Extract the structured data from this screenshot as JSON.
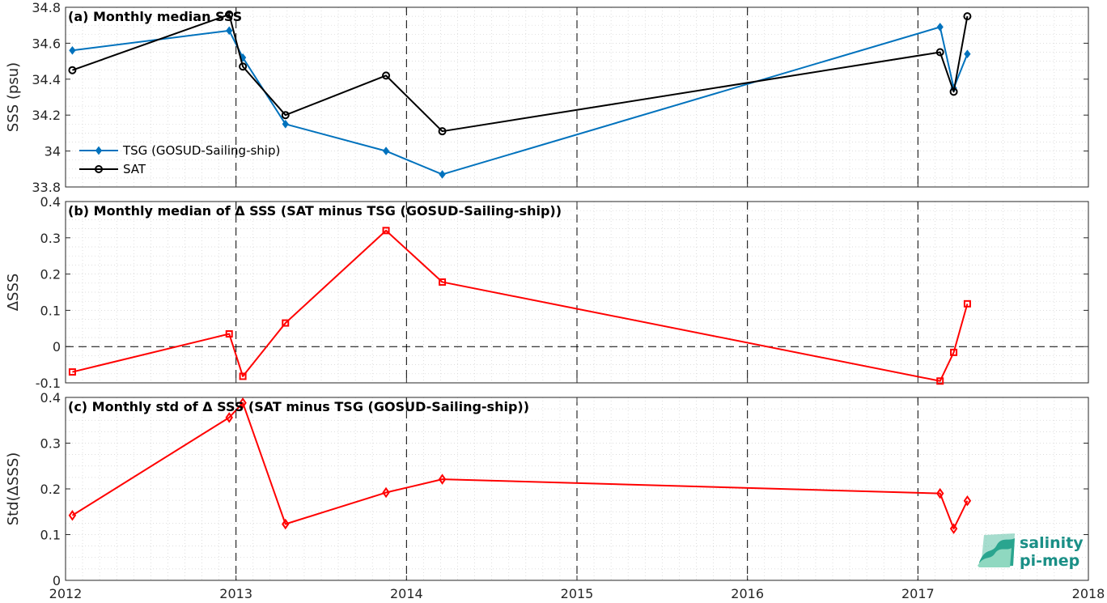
{
  "chart_data": [
    {
      "type": "line",
      "title": "(a) Monthly median SSS",
      "xlabel": "",
      "ylabel": "SSS (psu)",
      "xlim": [
        2012,
        2018
      ],
      "ylim": [
        33.8,
        34.8
      ],
      "yticks": [
        33.8,
        34,
        34.2,
        34.4,
        34.6,
        34.8
      ],
      "ytick_labels": [
        "33.8",
        "34",
        "34.2",
        "34.4",
        "34.6",
        "34.8"
      ],
      "grid": true,
      "legend_position": "lower-left",
      "series": [
        {
          "name": "TSG (GOSUD-Sailing-ship)",
          "color": "#0072BD",
          "marker": "diamond-filled",
          "x": [
            2012.04,
            2012.96,
            2013.04,
            2013.29,
            2013.88,
            2014.21,
            2017.13,
            2017.21,
            2017.29
          ],
          "y": [
            34.56,
            34.67,
            34.52,
            34.15,
            34.0,
            33.87,
            34.69,
            34.35,
            34.54
          ]
        },
        {
          "name": "SAT",
          "color": "#000000",
          "marker": "circle-open",
          "x": [
            2012.04,
            2012.96,
            2013.04,
            2013.29,
            2013.88,
            2014.21,
            2017.13,
            2017.21,
            2017.29
          ],
          "y": [
            34.45,
            34.76,
            34.47,
            34.2,
            34.42,
            34.11,
            34.55,
            34.33,
            34.75
          ]
        }
      ]
    },
    {
      "type": "line",
      "title": "(b) Monthly median of Δ SSS (SAT minus TSG (GOSUD-Sailing-ship))",
      "xlabel": "",
      "ylabel": "ΔSSS",
      "xlim": [
        2012,
        2018
      ],
      "ylim": [
        -0.1,
        0.4
      ],
      "yticks": [
        -0.1,
        0,
        0.1,
        0.2,
        0.3,
        0.4
      ],
      "ytick_labels": [
        "-0.1",
        "0",
        "0.1",
        "0.2",
        "0.3",
        "0.4"
      ],
      "grid": true,
      "zero_line": true,
      "series": [
        {
          "name": "",
          "color": "#FF0000",
          "marker": "square",
          "x": [
            2012.04,
            2012.96,
            2013.04,
            2013.29,
            2013.88,
            2014.21,
            2017.13,
            2017.21,
            2017.29
          ],
          "y": [
            -0.07,
            0.035,
            -0.082,
            0.065,
            0.32,
            0.178,
            -0.095,
            -0.016,
            0.118
          ]
        }
      ]
    },
    {
      "type": "line",
      "title": "(c) Monthly std of Δ SSS (SAT minus TSG (GOSUD-Sailing-ship))",
      "xlabel": "",
      "ylabel": "Std(ΔSSS)",
      "xlim": [
        2012,
        2018
      ],
      "ylim": [
        0,
        0.4
      ],
      "yticks": [
        0,
        0.1,
        0.2,
        0.3,
        0.4
      ],
      "ytick_labels": [
        "0",
        "0.1",
        "0.2",
        "0.3",
        "0.4"
      ],
      "xticks": [
        2012,
        2013,
        2014,
        2015,
        2016,
        2017,
        2018
      ],
      "xtick_labels": [
        "2012",
        "2013",
        "2014",
        "2015",
        "2016",
        "2017",
        "2018"
      ],
      "grid": true,
      "series": [
        {
          "name": "",
          "color": "#FF0000",
          "marker": "diamond-open",
          "x": [
            2012.04,
            2012.96,
            2013.04,
            2013.29,
            2013.88,
            2014.21,
            2017.13,
            2017.21,
            2017.29
          ],
          "y": [
            0.142,
            0.356,
            0.388,
            0.123,
            0.192,
            0.221,
            0.19,
            0.113,
            0.174
          ]
        }
      ]
    }
  ],
  "year_separators": [
    2013,
    2014,
    2015,
    2016,
    2017
  ],
  "logo": {
    "line1": "salinity",
    "line2": "pi-mep",
    "color": "#1a8f86"
  }
}
